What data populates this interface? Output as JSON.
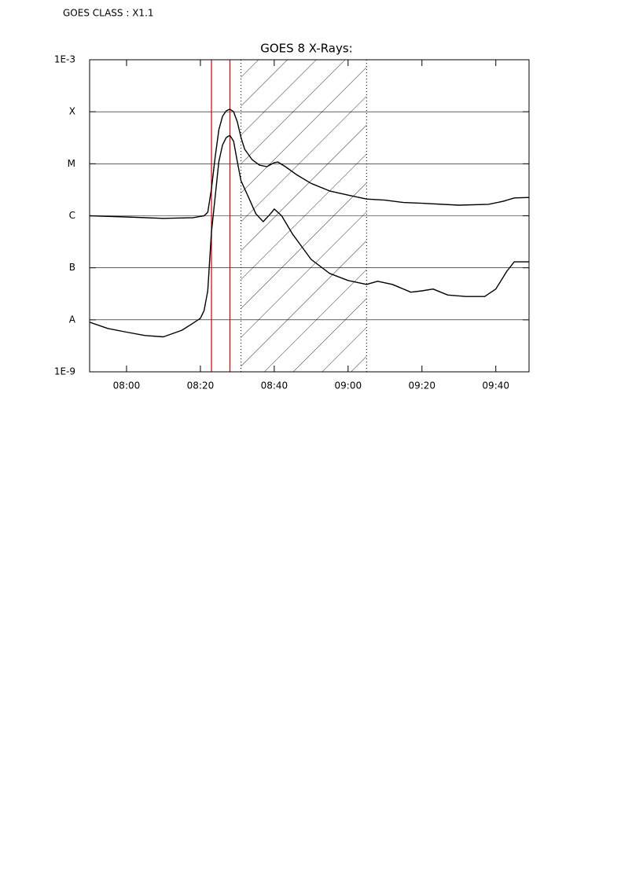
{
  "chart_data": {
    "type": "line",
    "header": "GOES CLASS : X1.1",
    "title": "GOES 8 X-Rays:",
    "ylog": true,
    "grid": true,
    "ylim": [
      1e-09,
      0.001
    ],
    "yticks": [
      {
        "value": 1e-09,
        "label": "1E-9"
      },
      {
        "value": 1e-08,
        "label": "A"
      },
      {
        "value": 1e-07,
        "label": "B"
      },
      {
        "value": 1e-06,
        "label": "C"
      },
      {
        "value": 1e-05,
        "label": "M"
      },
      {
        "value": 0.0001,
        "label": "X"
      },
      {
        "value": 0.001,
        "label": "1E-3"
      }
    ],
    "xlim": [
      "07:50",
      "09:49"
    ],
    "xticks": [
      "08:00",
      "08:20",
      "08:40",
      "09:00",
      "09:20",
      "09:40"
    ],
    "series": [
      {
        "color": "#000000",
        "x": [
          "07:50",
          "08:00",
          "08:10",
          "08:18",
          "08:21",
          "08:22",
          "08:23",
          "08:24",
          "08:25",
          "08:26",
          "08:27",
          "08:28",
          "08:29",
          "08:30",
          "08:31",
          "08:32",
          "08:34",
          "08:36",
          "08:38",
          "08:40",
          "08:41",
          "08:43",
          "08:46",
          "08:50",
          "08:55",
          "09:00",
          "09:05",
          "09:10",
          "09:15",
          "09:20",
          "09:30",
          "09:38",
          "09:42",
          "09:45",
          "09:49"
        ],
        "values": [
          1e-06,
          9.5e-07,
          8.9e-07,
          9.2e-07,
          1e-06,
          1.17e-06,
          3.3e-06,
          1.34e-05,
          4.5e-05,
          8.2e-05,
          0.000104,
          0.000112,
          0.0001,
          6.4e-05,
          3.2e-05,
          1.9e-05,
          1.2e-05,
          9.4e-06,
          8.8e-06,
          1.05e-05,
          1.08e-05,
          8.8e-06,
          6.2e-06,
          4.2e-06,
          3e-06,
          2.5e-06,
          2.1e-06,
          2e-06,
          1.8e-06,
          1.74e-06,
          1.6e-06,
          1.66e-06,
          1.9e-06,
          2.2e-06,
          2.25e-06
        ]
      },
      {
        "color": "#000000",
        "x": [
          "07:50",
          "07:55",
          "08:00",
          "08:05",
          "08:10",
          "08:15",
          "08:18",
          "08:20",
          "08:21",
          "08:22",
          "08:23",
          "08:24",
          "08:25",
          "08:26",
          "08:27",
          "08:28",
          "08:29",
          "08:30",
          "08:31",
          "08:33",
          "08:35",
          "08:37",
          "08:39",
          "08:40",
          "08:42",
          "08:45",
          "08:50",
          "08:55",
          "09:00",
          "09:05",
          "09:08",
          "09:12",
          "09:17",
          "09:20",
          "09:23",
          "09:27",
          "09:32",
          "09:37",
          "09:40",
          "09:43",
          "09:45",
          "09:49"
        ],
        "values": [
          9e-09,
          6.8e-09,
          5.8e-09,
          5e-09,
          4.7e-09,
          6.3e-09,
          8.6e-09,
          1.07e-08,
          1.5e-08,
          3.6e-08,
          4.9e-07,
          2.3e-06,
          1.1e-05,
          2.3e-05,
          3.2e-05,
          3.5e-05,
          2.7e-05,
          1.1e-05,
          4.7e-06,
          2.3e-06,
          1.1e-06,
          7.7e-07,
          1.1e-06,
          1.35e-06,
          1e-06,
          4.4e-07,
          1.45e-07,
          7.8e-08,
          5.7e-08,
          4.8e-08,
          5.5e-08,
          4.8e-08,
          3.4e-08,
          3.6e-08,
          3.9e-08,
          3e-08,
          2.8e-08,
          2.8e-08,
          3.9e-08,
          8.6e-08,
          1.3e-07,
          1.3e-07
        ]
      }
    ],
    "vlines": [
      {
        "x": "08:23",
        "color": "#cc0000"
      },
      {
        "x": "08:28",
        "color": "#cc0000"
      }
    ],
    "shaded": {
      "x": [
        "08:31",
        "09:05"
      ],
      "hatch": true
    }
  }
}
